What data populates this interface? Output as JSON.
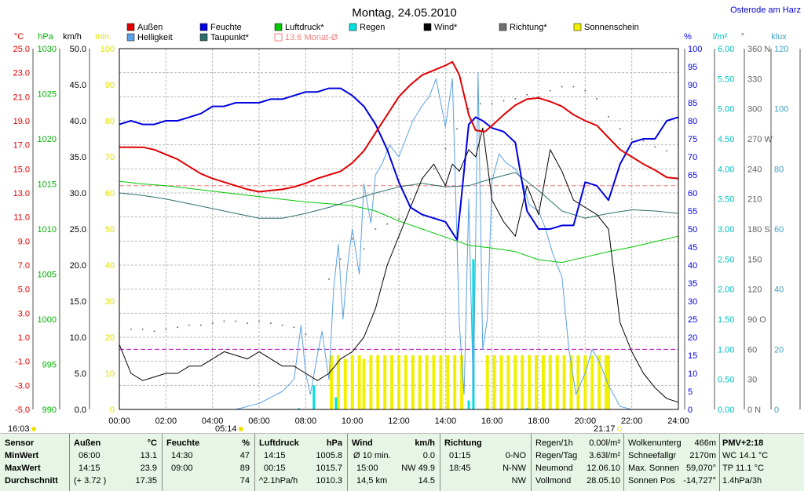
{
  "title": "Montag, 24.05.2010",
  "station": "Osterode am Harz",
  "legend": [
    {
      "label": "Außen",
      "color": "#e00000"
    },
    {
      "label": "Feuchte",
      "color": "#0000e0"
    },
    {
      "label": "Luftdruck*",
      "color": "#00c800"
    },
    {
      "label": "Regen",
      "color": "#00e0e0"
    },
    {
      "label": "Wind*",
      "color": "#000000"
    },
    {
      "label": "Richtung*",
      "color": "#707070"
    },
    {
      "label": "Sonnenschein",
      "color": "#f0f000"
    },
    {
      "label": "Helligkeit",
      "color": "#5aa0e6"
    },
    {
      "label": "Taupunkt*",
      "color": "#2e6e6e"
    },
    {
      "label": "13.6 Monat-Ø",
      "color": "#f08080"
    }
  ],
  "axes_left": [
    {
      "unit": "°C",
      "color": "#e00000",
      "ticks": [
        "25.0",
        "23.0",
        "21.0",
        "19.0",
        "17.0",
        "15.0",
        "13.0",
        "11.0",
        "9.0",
        "7.0",
        "5.0",
        "3.0",
        "1.0",
        "-1.0",
        "-3.0",
        "-5.0"
      ]
    },
    {
      "unit": "hPa",
      "color": "#00b000",
      "ticks": [
        "1030",
        "1025",
        "1020",
        "1015",
        "1010",
        "1005",
        "1000",
        "995",
        "990"
      ]
    },
    {
      "unit": "km/h",
      "color": "#000000",
      "ticks": [
        "50.0",
        "45.0",
        "40.0",
        "35.0",
        "30.0",
        "25.0",
        "20.0",
        "15.0",
        "10.0",
        "5.0",
        "0.0"
      ]
    },
    {
      "unit": "min",
      "color": "#e0e000",
      "ticks": [
        "100",
        "90",
        "80",
        "70",
        "60",
        "50",
        "40",
        "30",
        "20",
        "10",
        "0"
      ]
    }
  ],
  "axes_right": [
    {
      "unit": "%",
      "color": "#0000e0",
      "ticks": [
        "100",
        "95",
        "90",
        "85",
        "80",
        "75",
        "70",
        "65",
        "60",
        "55",
        "50",
        "45",
        "40",
        "35",
        "30",
        "25",
        "20",
        "15",
        "10",
        "5",
        "0"
      ]
    },
    {
      "unit": "l/m²",
      "color": "#00c0c0",
      "ticks": [
        "6.00",
        "5.50",
        "5.00",
        "4.50",
        "4.00",
        "3.50",
        "3.00",
        "2.50",
        "2.00",
        "1.50",
        "1.00",
        "0.50",
        "0.00"
      ]
    },
    {
      "unit": "°",
      "color": "#606060",
      "ticks": [
        "360 N",
        "330",
        "300",
        "270 W",
        "240",
        "210",
        "180 S",
        "150",
        "120",
        "90 O",
        "60",
        "30",
        "0 N"
      ]
    },
    {
      "unit": "klux",
      "color": "#40a0c0",
      "ticks": [
        "120",
        "100",
        "80",
        "60",
        "40",
        "20",
        "0"
      ]
    }
  ],
  "time_labels": [
    "00:00",
    "02:00",
    "04:00",
    "06:00",
    "08:00",
    "10:00",
    "12:00",
    "14:00",
    "16:00",
    "18:00",
    "20:00",
    "22:00",
    "24:00"
  ],
  "sunrise": "05:14",
  "sunset": "21:17",
  "corner_time": "16:03",
  "chart_data": {
    "type": "line",
    "title": "Montag, 24.05.2010",
    "x_unit": "hour",
    "xlim": [
      0,
      24
    ],
    "series": [
      {
        "name": "Außen",
        "unit": "°C",
        "ylim": [
          -5,
          25
        ],
        "x": [
          0,
          0.5,
          1,
          1.5,
          2,
          2.5,
          3,
          3.5,
          4,
          4.5,
          5,
          5.5,
          6,
          6.5,
          7,
          7.5,
          8,
          8.5,
          9,
          9.5,
          10,
          10.5,
          11,
          11.5,
          12,
          12.5,
          13,
          13.5,
          14,
          14.3,
          14.6,
          15,
          15.3,
          15.7,
          16,
          16.5,
          17,
          17.5,
          18,
          18.5,
          19,
          19.5,
          20,
          20.5,
          21,
          21.5,
          22,
          22.5,
          23,
          23.5,
          24
        ],
        "values": [
          16.8,
          16.8,
          16.8,
          16.6,
          16.2,
          15.8,
          15.2,
          14.6,
          14.2,
          13.9,
          13.6,
          13.3,
          13.1,
          13.2,
          13.3,
          13.5,
          13.8,
          14.2,
          14.5,
          14.8,
          15.5,
          16.5,
          18,
          19.5,
          21,
          22,
          22.8,
          23.2,
          23.6,
          23.9,
          22.8,
          19.5,
          18.2,
          18.1,
          18.6,
          19.5,
          20.3,
          20.8,
          20.9,
          20.6,
          20.2,
          19.5,
          19.0,
          18.6,
          17.6,
          16.6,
          16.0,
          15.4,
          14.9,
          14.3,
          14.2
        ]
      },
      {
        "name": "Feuchte",
        "unit": "%",
        "ylim": [
          0,
          100
        ],
        "x": [
          0,
          0.5,
          1,
          1.5,
          2,
          2.5,
          3,
          3.5,
          4,
          4.5,
          5,
          5.5,
          6,
          6.5,
          7,
          7.5,
          8,
          8.5,
          9,
          9.5,
          10,
          10.5,
          11,
          11.5,
          12,
          12.5,
          13,
          13.5,
          14,
          14.5,
          15,
          15.3,
          15.6,
          16,
          16.5,
          17,
          17.5,
          18,
          18.5,
          19,
          19.5,
          20,
          20.5,
          21,
          21.5,
          22,
          22.5,
          23,
          23.5,
          24
        ],
        "values": [
          79,
          80,
          79,
          79,
          80,
          80,
          81,
          82,
          84,
          84,
          85,
          85,
          85,
          86,
          86,
          87,
          88,
          88,
          89,
          89,
          87,
          84,
          79,
          72,
          63,
          56,
          54,
          53,
          52,
          47,
          79,
          81,
          80,
          78,
          77,
          74,
          55,
          50,
          50,
          51,
          51,
          63,
          62,
          58,
          68,
          74,
          75,
          75,
          80,
          81
        ]
      },
      {
        "name": "Luftdruck*",
        "unit": "hPa",
        "ylim": [
          990,
          1030
        ],
        "x": [
          0,
          1,
          2,
          3,
          4,
          5,
          6,
          7,
          8,
          9,
          10,
          11,
          12,
          13,
          14,
          15,
          16,
          17,
          18,
          19,
          20,
          21,
          22,
          23,
          24
        ],
        "values": [
          1015.3,
          1015.0,
          1014.8,
          1014.5,
          1014.2,
          1013.9,
          1013.6,
          1013.3,
          1013.0,
          1012.8,
          1012.6,
          1012.0,
          1010.9,
          1010.0,
          1009.1,
          1008.2,
          1007.9,
          1007.5,
          1006.6,
          1006.3,
          1006.9,
          1007.5,
          1008.0,
          1008.6,
          1009.2
        ]
      },
      {
        "name": "Taupunkt*",
        "unit": "°C",
        "ylim": [
          -5,
          25
        ],
        "x": [
          0,
          1,
          2,
          3,
          4,
          5,
          6,
          7,
          8,
          9,
          10,
          11,
          12,
          13,
          14,
          15,
          16,
          17,
          18,
          19,
          20,
          21,
          22,
          23,
          24
        ],
        "values": [
          13.0,
          12.8,
          12.5,
          12.1,
          11.7,
          11.3,
          10.9,
          10.9,
          11.3,
          11.8,
          12.4,
          13.0,
          13.5,
          13.8,
          13.5,
          13.6,
          14.2,
          14.7,
          13.2,
          11.5,
          10.9,
          11.3,
          11.6,
          11.5,
          11.3
        ]
      },
      {
        "name": "Wind*",
        "unit": "km/h",
        "ylim": [
          0,
          50
        ],
        "x": [
          0,
          0.5,
          1,
          1.5,
          2,
          2.5,
          3,
          3.5,
          4,
          4.5,
          5,
          5.5,
          6,
          6.5,
          7,
          7.5,
          8,
          8.5,
          9,
          9.5,
          10,
          10.5,
          11,
          11.5,
          12,
          12.5,
          13,
          13.5,
          14,
          14.3,
          14.6,
          15,
          15.3,
          15.6,
          16,
          16.5,
          17,
          17.5,
          18,
          18.5,
          19,
          19.5,
          20,
          20.5,
          21,
          21.5,
          22,
          22.5,
          23,
          23.5,
          24
        ],
        "values": [
          9,
          5,
          4,
          4.5,
          5,
          5,
          6,
          6,
          7,
          8,
          7.5,
          7,
          8,
          7,
          6,
          6,
          5,
          4,
          5,
          7,
          8,
          10,
          14,
          20,
          24,
          28,
          32,
          34,
          31,
          34,
          33,
          36,
          35,
          39,
          29,
          26,
          24,
          31,
          27,
          36,
          33,
          29,
          28,
          27,
          25,
          12,
          8,
          5,
          3,
          1.5,
          1
        ]
      },
      {
        "name": "Richtung*",
        "unit": "°",
        "ylim": [
          0,
          360
        ],
        "x": [
          0.5,
          1,
          1.5,
          2,
          2.5,
          3,
          3.5,
          4,
          4.5,
          5,
          5.5,
          6,
          6.5,
          7,
          7.5,
          8,
          8.5,
          9,
          9.5,
          10,
          10.5,
          11,
          11.5,
          12,
          12.5,
          13,
          13.5,
          14,
          14.5,
          15,
          15.5,
          16,
          16.5,
          17,
          17.5,
          18,
          18.5,
          19,
          19.5,
          20,
          20.5,
          21,
          21.5,
          22,
          22.5,
          23,
          23.5
        ],
        "values": [
          80,
          80,
          78,
          80,
          82,
          84,
          84,
          86,
          88,
          88,
          86,
          88,
          86,
          84,
          82,
          75,
          60,
          130,
          150,
          170,
          160,
          180,
          185,
          190,
          210,
          230,
          240,
          260,
          280,
          300,
          305,
          305,
          308,
          310,
          314,
          312,
          318,
          322,
          322,
          318,
          310,
          292,
          280,
          270,
          268,
          262,
          258
        ]
      },
      {
        "name": "Regen",
        "unit": "l/m²",
        "ylim": [
          0,
          6
        ],
        "x": [
          0,
          7.6,
          7.7,
          8.3,
          8.35,
          8.4,
          9.2,
          9.3,
          9.4,
          14.9,
          15.0,
          15.1,
          15.2,
          15.3,
          15.4,
          17.5,
          24
        ],
        "values": [
          0,
          0,
          0.02,
          0,
          0.4,
          0,
          0,
          0.2,
          0,
          0,
          0.15,
          0,
          2.5,
          0,
          0,
          0.02,
          0
        ]
      },
      {
        "name": "Helligkeit",
        "unit": "klux",
        "ylim": [
          0,
          120
        ],
        "x": [
          5,
          6,
          7,
          7.5,
          7.8,
          8.0,
          8.2,
          8.5,
          8.7,
          9.0,
          9.2,
          9.4,
          9.6,
          9.8,
          10.0,
          10.3,
          10.5,
          10.8,
          11.0,
          11.3,
          11.6,
          12.0,
          12.3,
          12.6,
          13.0,
          13.3,
          13.6,
          14.0,
          14.3,
          14.6,
          14.8,
          15.0,
          15.2,
          15.4,
          15.6,
          15.8,
          16.0,
          16.3,
          16.6,
          17.0,
          17.3,
          17.6,
          18.0,
          18.3,
          18.6,
          19.0,
          19.3,
          19.6,
          20.0,
          20.3,
          20.6,
          21.0,
          21.5,
          22,
          24
        ],
        "values": [
          0,
          2,
          6,
          10,
          28,
          12,
          5,
          18,
          26,
          10,
          40,
          55,
          30,
          48,
          60,
          45,
          75,
          62,
          78,
          82,
          88,
          84,
          90,
          96,
          101,
          104,
          110,
          94,
          110,
          28,
          5,
          70,
          4,
          112,
          20,
          30,
          76,
          85,
          82,
          80,
          76,
          68,
          66,
          60,
          52,
          44,
          20,
          5,
          12,
          20,
          16,
          8,
          1,
          0,
          0
        ]
      },
      {
        "name": "Sonnenschein",
        "unit": "min",
        "ylim": [
          0,
          100
        ],
        "x": [
          9.1,
          9.4,
          9.7,
          10.0,
          10.3,
          10.5,
          10.8,
          11.1,
          11.4,
          11.7,
          12.0,
          12.3,
          12.6,
          12.9,
          13.2,
          13.5,
          13.8,
          14.1,
          14.4,
          14.7,
          15.8,
          16.1,
          16.4,
          16.7,
          17.0,
          17.3,
          17.6,
          17.9,
          18.2,
          18.5,
          18.8,
          19.1,
          19.4,
          19.7,
          20.0,
          20.3,
          20.6,
          20.9,
          21.0
        ],
        "values": [
          15,
          15,
          14,
          15,
          15,
          14,
          15,
          15,
          15,
          15,
          15,
          15,
          15,
          15,
          15,
          15,
          15,
          15,
          15,
          15,
          15,
          15,
          15,
          15,
          15,
          15,
          15,
          15,
          15,
          15,
          15,
          15,
          15,
          15,
          15,
          15,
          15,
          15,
          15
        ]
      }
    ],
    "reference_lines": [
      {
        "name": "13.6 Monat-Ø",
        "value": 13.6,
        "unit": "°C",
        "color": "#f08080"
      },
      {
        "name": "",
        "value": 1.0,
        "unit": "l/m²",
        "color": "#c000c0"
      }
    ]
  },
  "table": {
    "col_sensor": {
      "header": "Sensor",
      "rows": [
        "MinWert",
        "MaxWert",
        "Durchschnitt"
      ]
    },
    "col_aussen": {
      "header": "Außen",
      "unit": "°C",
      "rows": [
        [
          "06:00",
          "13.1"
        ],
        [
          "14:15",
          "23.9"
        ],
        [
          "(+ 3.72 )",
          "17.35"
        ]
      ]
    },
    "col_feuchte": {
      "header": "Feuchte",
      "unit": "%",
      "rows": [
        [
          "14:30",
          "47"
        ],
        [
          "09:00",
          "89"
        ],
        [
          "",
          "74"
        ]
      ]
    },
    "col_luftdruck": {
      "header": "Luftdruck",
      "unit": "hPa",
      "rows": [
        [
          "14:15",
          "1005.8"
        ],
        [
          "00:15",
          "1015.7"
        ],
        [
          "^2.1hPa/h",
          "1010.3"
        ]
      ]
    },
    "col_wind": {
      "header": "Wind",
      "unit": "km/h",
      "rows": [
        [
          "Ø 10 min.",
          "0.0"
        ],
        [
          "15:00",
          "NW 49.9"
        ],
        [
          "14,5 km",
          "14.5"
        ]
      ]
    },
    "col_richtung": {
      "header": "Richtung",
      "rows": [
        [
          "01:15",
          "0-NO"
        ],
        [
          "18:45",
          "N-NW"
        ],
        [
          "",
          "NW"
        ]
      ]
    },
    "col_regen": {
      "rows": [
        [
          "Regen/1h",
          "0.00l/m²"
        ],
        [
          "Regen/Tag",
          "3.63l/m²"
        ],
        [
          "Neumond",
          "12.06.10"
        ],
        [
          "Vollmond",
          "28.05.10"
        ]
      ]
    },
    "col_wolken": {
      "rows": [
        [
          "Wolkenunterg",
          "466m"
        ],
        [
          "Schneefallgr",
          "2170m"
        ],
        [
          "Max. Sonnen",
          "59,070°"
        ],
        [
          "Sonnen Pos",
          "-14,727°"
        ]
      ]
    },
    "col_pmv": {
      "rows": [
        "PMV+2:18",
        "WC 14.1 °C",
        "TP 11.1 °C",
        "1.4hPa/3h"
      ]
    }
  }
}
